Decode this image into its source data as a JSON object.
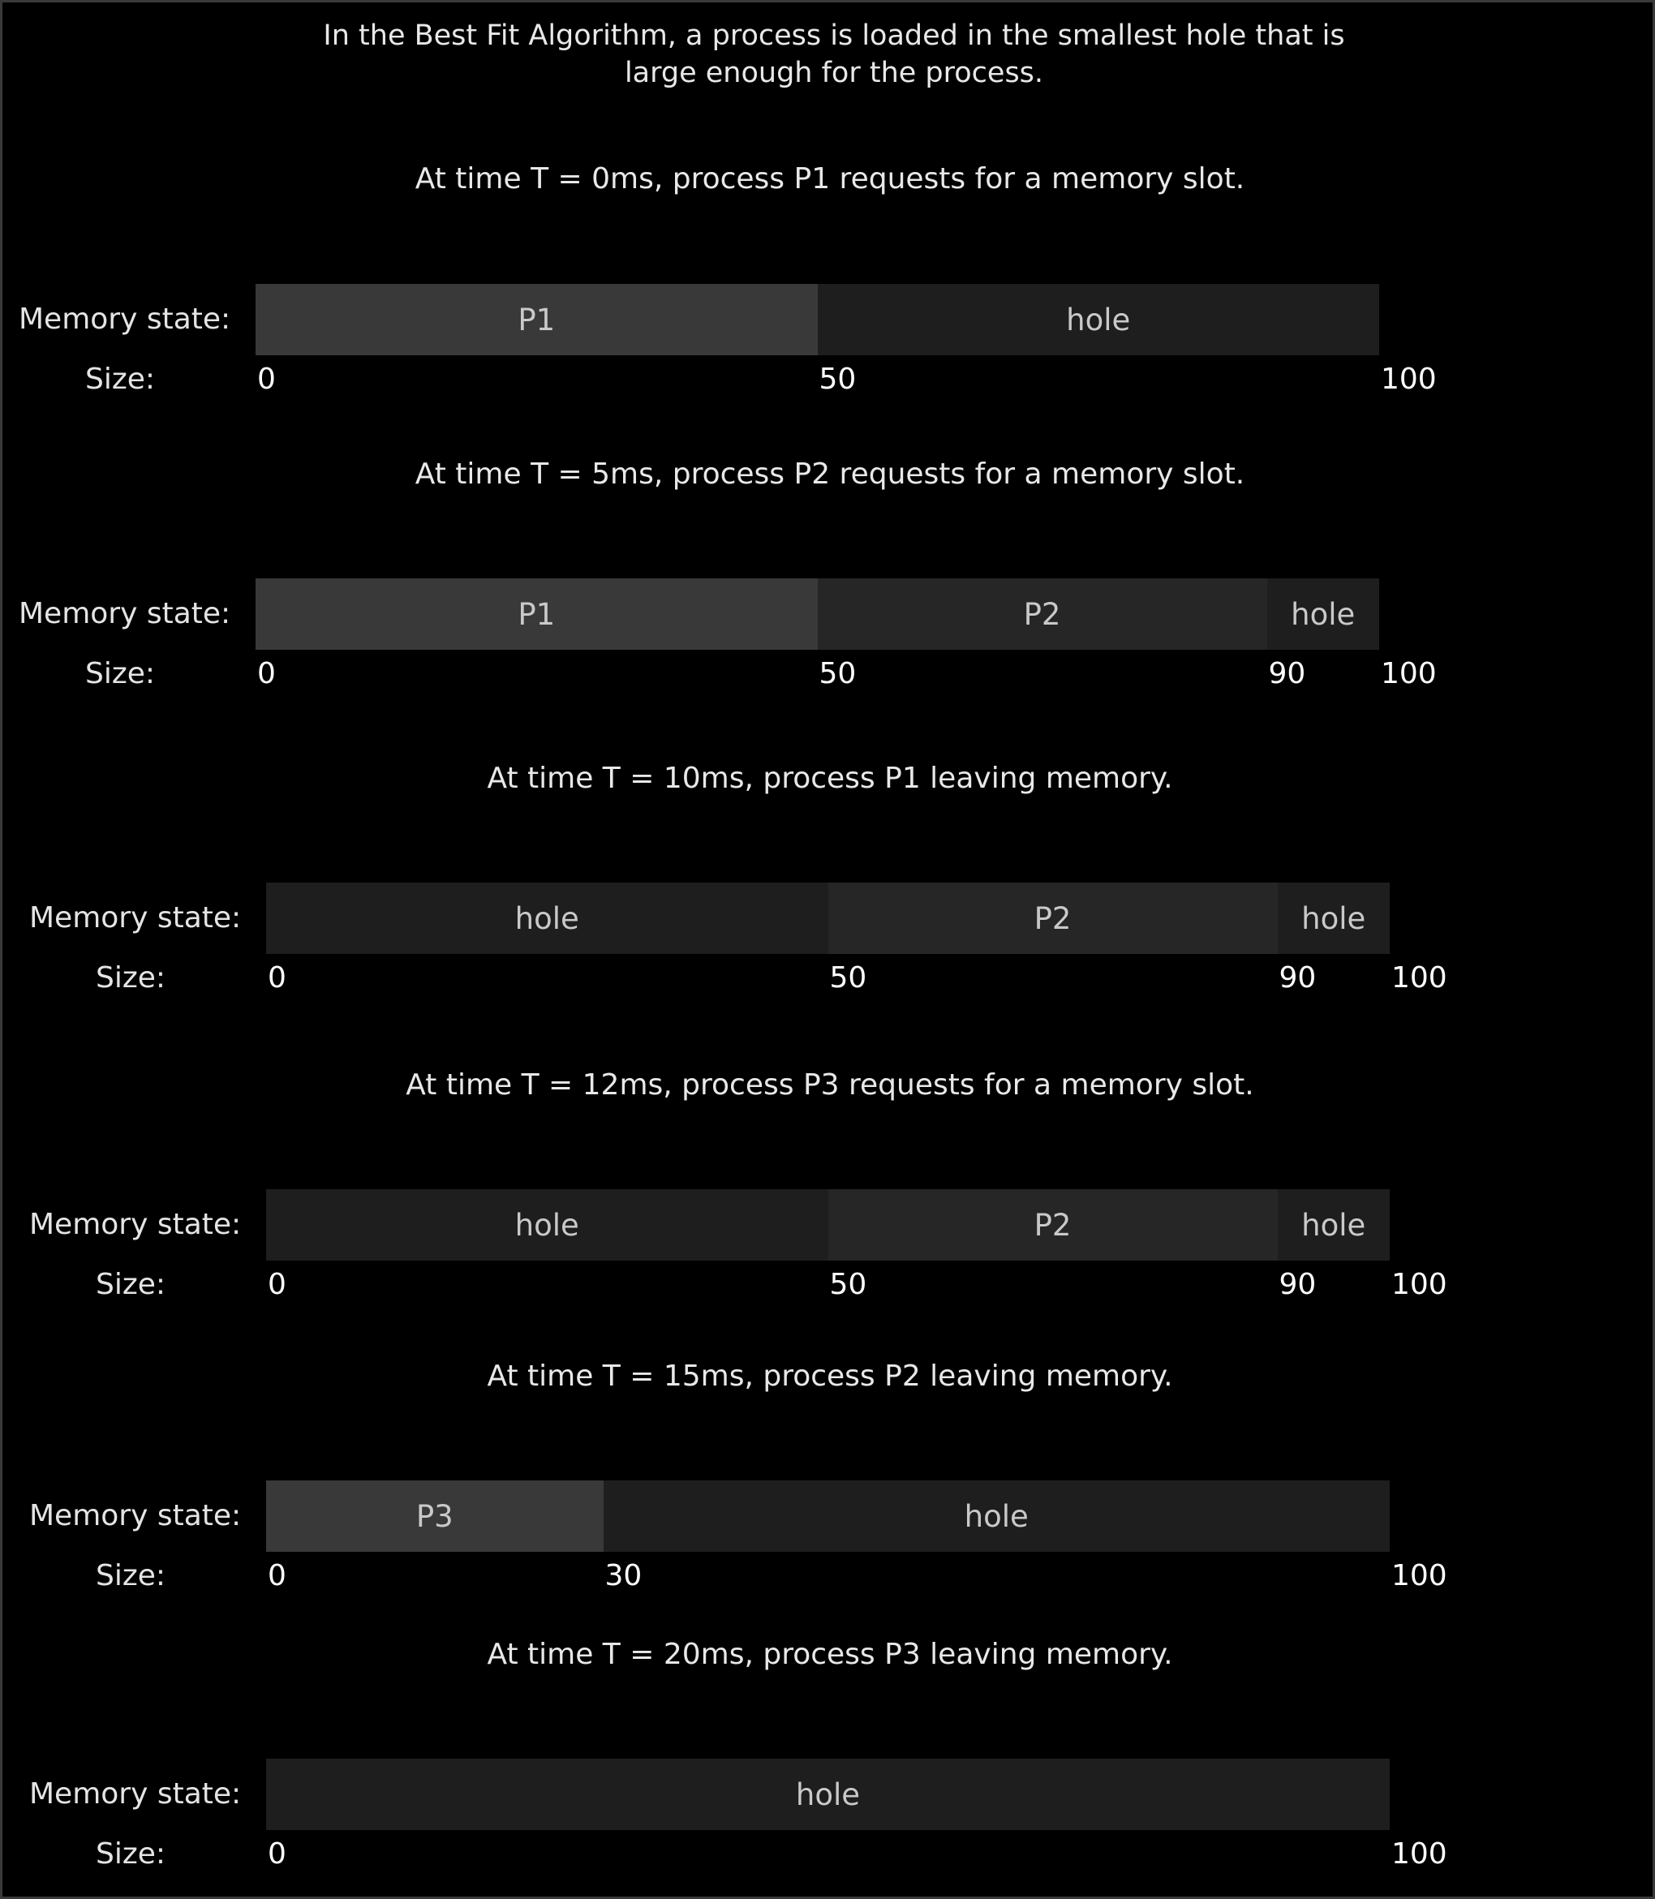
{
  "intro": {
    "line1": "In the Best Fit Algorithm, a process is loaded in the smallest hole that is",
    "line2": "large enough for the process."
  },
  "labels": {
    "memory_state": "Memory state:",
    "size": "Size:"
  },
  "memory_total": 100,
  "steps": [
    {
      "caption": "At time T = 0ms,  process P1 requests for a memory slot.",
      "segments": [
        {
          "label": "P1",
          "start": 0,
          "end": 50,
          "kind": "proc"
        },
        {
          "label": "hole",
          "start": 50,
          "end": 100,
          "kind": "hole"
        }
      ],
      "ticks": [
        "0",
        "50",
        "100"
      ]
    },
    {
      "caption": "At time T = 5ms,  process P2 requests for a memory slot.",
      "segments": [
        {
          "label": "P1",
          "start": 0,
          "end": 50,
          "kind": "proc"
        },
        {
          "label": "P2",
          "start": 50,
          "end": 90,
          "kind": "proc2"
        },
        {
          "label": "hole",
          "start": 90,
          "end": 100,
          "kind": "hole"
        }
      ],
      "ticks": [
        "0",
        "50",
        "90",
        "100"
      ]
    },
    {
      "caption": "At time T = 10ms,  process P1 leaving memory.",
      "segments": [
        {
          "label": "hole",
          "start": 0,
          "end": 50,
          "kind": "hole"
        },
        {
          "label": "P2",
          "start": 50,
          "end": 90,
          "kind": "proc2"
        },
        {
          "label": "hole",
          "start": 90,
          "end": 100,
          "kind": "hole"
        }
      ],
      "ticks": [
        "0",
        "50",
        "90",
        "100"
      ]
    },
    {
      "caption": "At time T = 12ms,  process P3 requests for a memory slot.",
      "segments": [
        {
          "label": "hole",
          "start": 0,
          "end": 50,
          "kind": "hole"
        },
        {
          "label": "P2",
          "start": 50,
          "end": 90,
          "kind": "proc2"
        },
        {
          "label": "hole",
          "start": 90,
          "end": 100,
          "kind": "hole"
        }
      ],
      "ticks": [
        "0",
        "50",
        "90",
        "100"
      ]
    },
    {
      "caption": "At time T = 15ms,  process P2 leaving memory.",
      "segments": [
        {
          "label": "P3",
          "start": 0,
          "end": 30,
          "kind": "proc"
        },
        {
          "label": "hole",
          "start": 30,
          "end": 100,
          "kind": "hole"
        }
      ],
      "ticks": [
        "0",
        "30",
        "100"
      ]
    },
    {
      "caption": "At time T = 20ms,  process P3 leaving memory.",
      "segments": [
        {
          "label": "hole",
          "start": 0,
          "end": 100,
          "kind": "hole"
        }
      ],
      "ticks": [
        "0",
        "100"
      ]
    }
  ],
  "colors": {
    "background": "#000000",
    "process": "#393939",
    "process_alt": "#262626",
    "hole": "#1e1e1e",
    "text": "#e8e8e8"
  }
}
